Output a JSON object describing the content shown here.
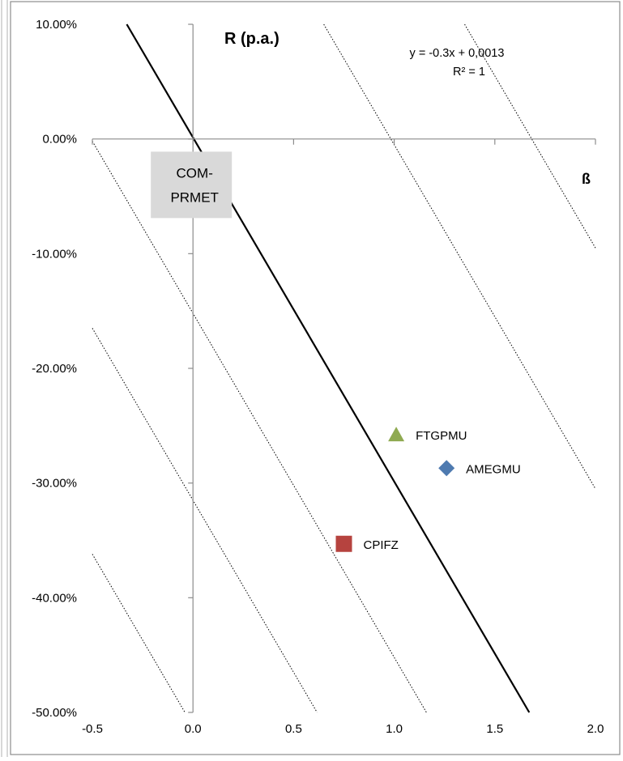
{
  "chart_data": {
    "type": "scatter",
    "title": "",
    "xlabel": "ß",
    "ylabel": "R (p.a.)",
    "xlim": [
      -0.5,
      2.0
    ],
    "ylim": [
      -50,
      10
    ],
    "x_ticks": [
      -0.5,
      0.0,
      0.5,
      1.0,
      1.5,
      2.0
    ],
    "x_tick_labels": [
      "-0.5",
      "0.0",
      "0.5",
      "1.0",
      "1.5",
      "2.0"
    ],
    "y_ticks": [
      10,
      0,
      -10,
      -20,
      -30,
      -40,
      -50
    ],
    "y_tick_labels": [
      "10.00%",
      "0.00%",
      "-10.00%",
      "-20.00%",
      "-30.00%",
      "-40.00%",
      "-50.00%"
    ],
    "grid": false,
    "points": [
      {
        "label": "FTGPMU",
        "x": 1.01,
        "y": -25.8,
        "marker": "triangle",
        "color": "#8FAA51"
      },
      {
        "label": "AMEGMU",
        "x": 1.26,
        "y": -28.7,
        "marker": "diamond",
        "color": "#4E7AB0"
      },
      {
        "label": "CPIFZ",
        "x": 0.75,
        "y": -35.3,
        "marker": "square",
        "color": "#B6433F"
      }
    ],
    "trendline": {
      "slope": -30,
      "intercept": 0.13,
      "color": "#000000",
      "equation": "y = -0.3x + 0,0013",
      "r_squared": "R² = 1"
    },
    "reference_lines": [
      {
        "intercept": 29.5
      },
      {
        "intercept": 50.5
      },
      {
        "intercept": -15.2
      },
      {
        "intercept": -31.5
      },
      {
        "intercept": -51.2
      }
    ],
    "annotation": {
      "lines": [
        "COM-",
        "PRMET"
      ],
      "x": 0.0,
      "y": -4.0,
      "background": "#D9D9D9"
    }
  }
}
